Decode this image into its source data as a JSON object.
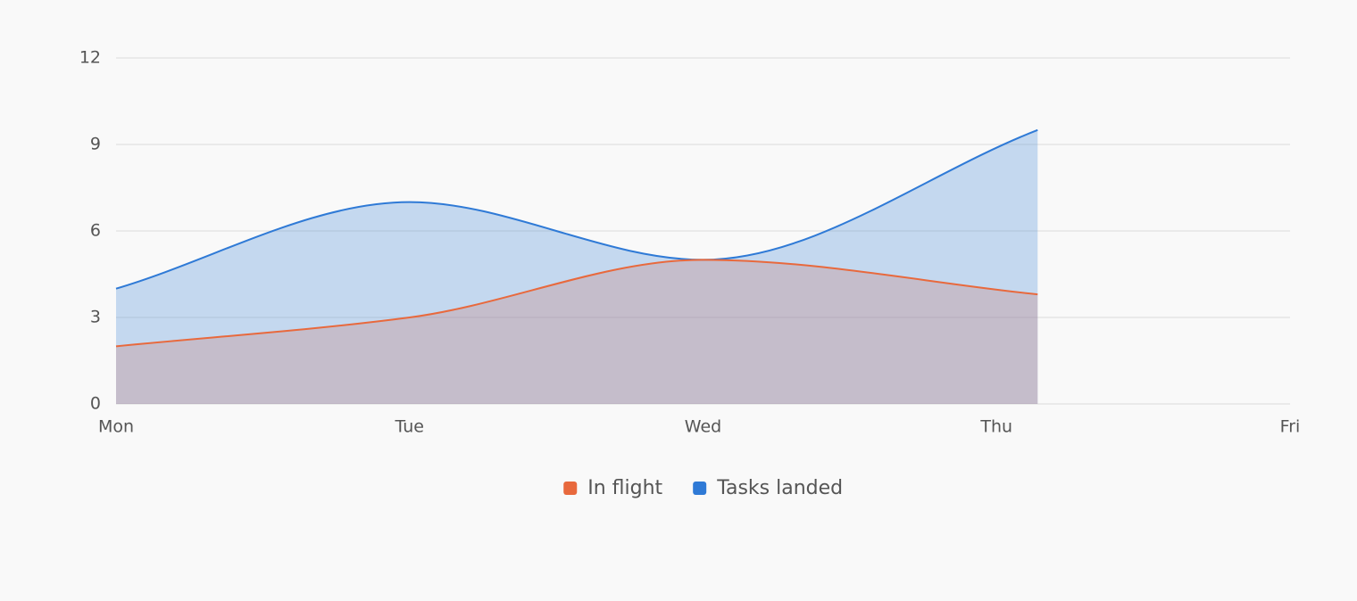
{
  "chart_data": {
    "type": "area",
    "x": [
      0,
      1,
      2,
      3.14
    ],
    "xlim": [
      0,
      4
    ],
    "xticks": [
      {
        "value": 0,
        "label": "Mon"
      },
      {
        "value": 1,
        "label": "Tue"
      },
      {
        "value": 2,
        "label": "Wed"
      },
      {
        "value": 3,
        "label": "Thu"
      },
      {
        "value": 4,
        "label": "Fri"
      }
    ],
    "ylim": [
      0,
      12
    ],
    "yticks": [
      0,
      3,
      6,
      9,
      12
    ],
    "grid": true,
    "legend": "bottom",
    "series": [
      {
        "name": "In flight",
        "color": "#e8693d",
        "values": [
          2,
          3,
          5,
          3.8
        ]
      },
      {
        "name": "Tasks landed",
        "color": "#2f7ad6",
        "values": [
          4,
          7,
          5,
          9.5
        ]
      }
    ]
  }
}
